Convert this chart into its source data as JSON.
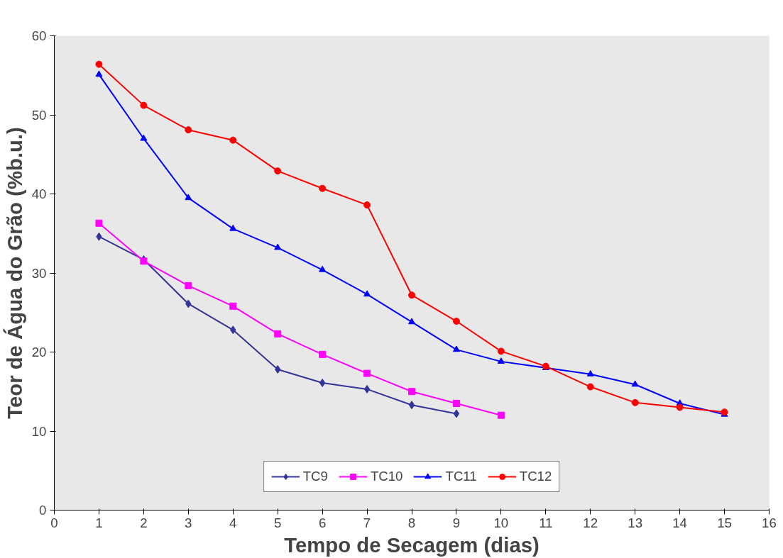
{
  "chart_data": {
    "type": "line",
    "xlabel": "Tempo de Secagem (dias)",
    "ylabel": "Teor de Água do Grão (%b.u.)",
    "xlim": [
      0,
      16
    ],
    "xticks": [
      0,
      1,
      2,
      3,
      4,
      5,
      6,
      7,
      8,
      9,
      10,
      11,
      12,
      13,
      14,
      15,
      16
    ],
    "ylim": [
      0,
      60
    ],
    "yticks": [
      0,
      10,
      20,
      30,
      40,
      50,
      60
    ],
    "legend": "bottom",
    "line_style": "solid",
    "series": [
      {
        "name": "TC9",
        "color": "#333399",
        "marker": "diamond",
        "x": [
          1,
          2,
          3,
          4,
          5,
          6,
          7,
          8,
          9
        ],
        "values": [
          34.6,
          31.7,
          26.1,
          22.8,
          17.8,
          16.1,
          15.3,
          13.3,
          12.2
        ]
      },
      {
        "name": "TC10",
        "color": "#ff00ff",
        "marker": "square",
        "x": [
          1,
          2,
          3,
          4,
          5,
          6,
          7,
          8,
          9,
          10
        ],
        "values": [
          36.3,
          31.5,
          28.4,
          25.8,
          22.3,
          19.7,
          17.3,
          15.0,
          13.5,
          12.0
        ]
      },
      {
        "name": "TC11",
        "color": "#0000ff",
        "marker": "triangle",
        "x": [
          1,
          2,
          3,
          4,
          5,
          6,
          7,
          8,
          9,
          10,
          11,
          12,
          13,
          14,
          15
        ],
        "values": [
          55.1,
          47.0,
          39.5,
          35.6,
          33.2,
          30.4,
          27.3,
          23.8,
          20.3,
          18.8,
          18.0,
          17.2,
          15.9,
          13.5,
          12.1
        ]
      },
      {
        "name": "TC12",
        "color": "#ff0000",
        "marker": "circle",
        "x": [
          1,
          2,
          3,
          4,
          5,
          6,
          7,
          8,
          9,
          10,
          11,
          12,
          13,
          14,
          15
        ],
        "values": [
          56.4,
          51.2,
          48.1,
          46.8,
          42.9,
          40.7,
          38.6,
          27.2,
          23.9,
          20.1,
          18.2,
          15.6,
          13.6,
          13.0,
          12.4
        ]
      }
    ]
  }
}
